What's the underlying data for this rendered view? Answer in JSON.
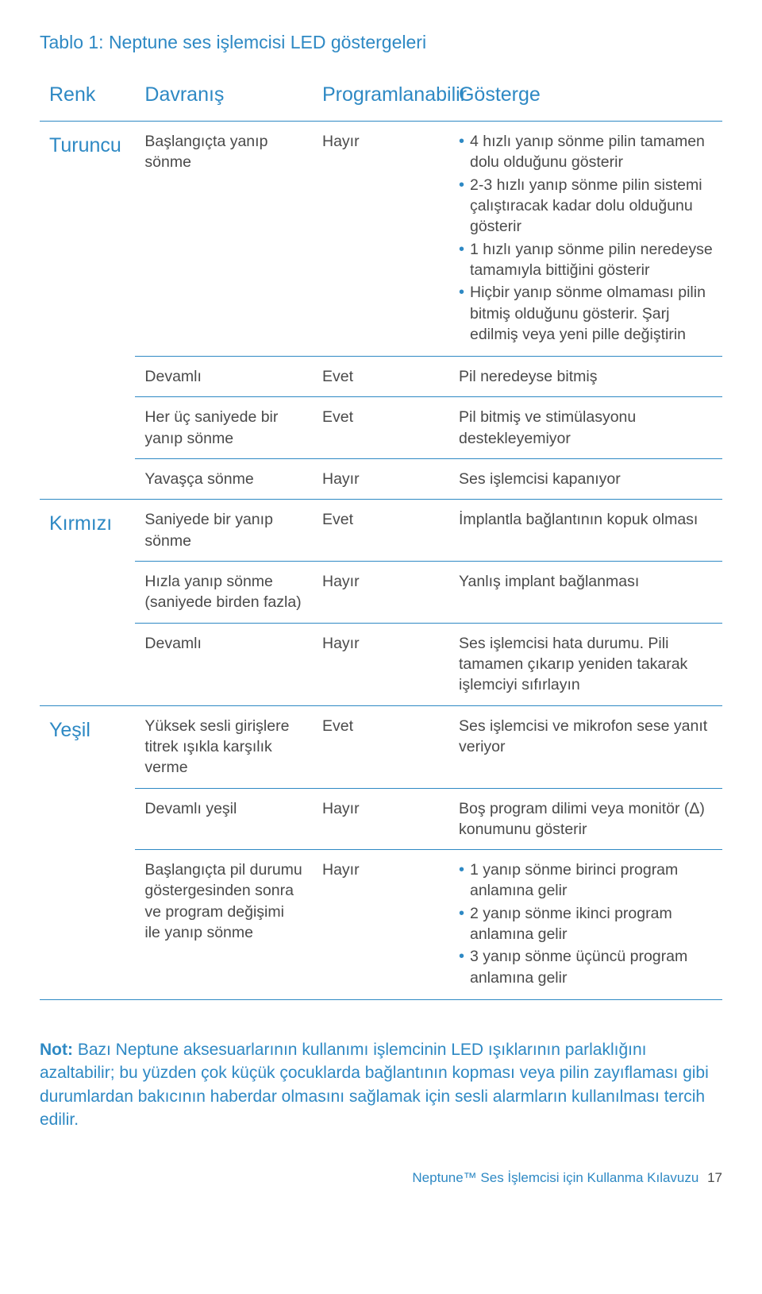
{
  "title": "Tablo 1:  Neptune ses işlemcisi LED göstergeleri",
  "columns": [
    "Renk",
    "Davranış",
    "Programlanabilir",
    "Gösterge"
  ],
  "groups": [
    {
      "color": "Turuncu",
      "rows": [
        {
          "behavior": "Başlangıçta yanıp sönme",
          "prog": "Hayır",
          "indicator_bullets": [
            "4 hızlı yanıp sönme pilin tamamen dolu olduğunu gösterir",
            "2-3 hızlı yanıp sönme pilin sistemi çalıştıracak kadar dolu olduğunu gösterir",
            "1 hızlı yanıp sönme pilin neredeyse tamamıyla bittiğini gösterir",
            "Hiçbir yanıp sönme olmaması pilin bitmiş olduğunu gösterir. Şarj edilmiş veya yeni pille değiştirin"
          ]
        },
        {
          "behavior": "Devamlı",
          "prog": "Evet",
          "indicator_text": "Pil neredeyse bitmiş"
        },
        {
          "behavior": "Her üç saniyede bir yanıp sönme",
          "prog": "Evet",
          "indicator_text": "Pil bitmiş ve stimülasyonu destekleyemiyor"
        },
        {
          "behavior": "Yavaşça sönme",
          "prog": "Hayır",
          "indicator_text": "Ses işlemcisi kapanıyor"
        }
      ]
    },
    {
      "color": "Kırmızı",
      "rows": [
        {
          "behavior": "Saniyede bir yanıp sönme",
          "prog": "Evet",
          "indicator_text": "İmplantla bağlantının kopuk olması"
        },
        {
          "behavior": "Hızla yanıp sönme (saniyede birden fazla)",
          "prog": "Hayır",
          "indicator_text": "Yanlış implant bağlanması"
        },
        {
          "behavior": "Devamlı",
          "prog": "Hayır",
          "indicator_text": "Ses işlemcisi hata durumu. Pili tamamen çıkarıp yeniden takarak işlemciyi sıfırlayın"
        }
      ]
    },
    {
      "color": "Yeşil",
      "rows": [
        {
          "behavior": "Yüksek sesli girişlere titrek ışıkla karşılık verme",
          "prog": "Evet",
          "indicator_text": "Ses işlemcisi ve mikrofon sese yanıt veriyor"
        },
        {
          "behavior": "Devamlı yeşil",
          "prog": "Hayır",
          "indicator_text": "Boş program dilimi veya monitör (Δ) konumunu gösterir"
        },
        {
          "behavior": "Başlangıçta pil durumu göstergesinden sonra ve program değişimi ile yanıp sönme",
          "prog": "Hayır",
          "indicator_bullets": [
            "1 yanıp sönme birinci program anlamına gelir",
            "2 yanıp sönme ikinci program anlamına gelir",
            "3 yanıp sönme üçüncü program anlamına gelir"
          ]
        }
      ]
    }
  ],
  "note_lead": "Not:",
  "note_body": "Bazı Neptune aksesuarlarının kullanımı işlemcinin LED ışıklarının parlaklığını azaltabilir; bu yüzden çok küçük çocuklarda bağlantının kopması veya pilin zayıflaması gibi durumlardan bakıcının haberdar olmasını sağlamak için sesli alarmların kullanılması tercih edilir.",
  "footer_text": "Neptune™ Ses İşlemcisi için Kullanma Kılavuzu",
  "footer_page": "17",
  "colors": {
    "accent": "#2e89c4",
    "body": "#4a4a4a",
    "background": "#ffffff"
  },
  "col_widths_pct": [
    14,
    26,
    20,
    40
  ],
  "font_sizes_pt": {
    "title": 17,
    "th": 19,
    "td": 15,
    "note": 16,
    "footer": 13
  }
}
